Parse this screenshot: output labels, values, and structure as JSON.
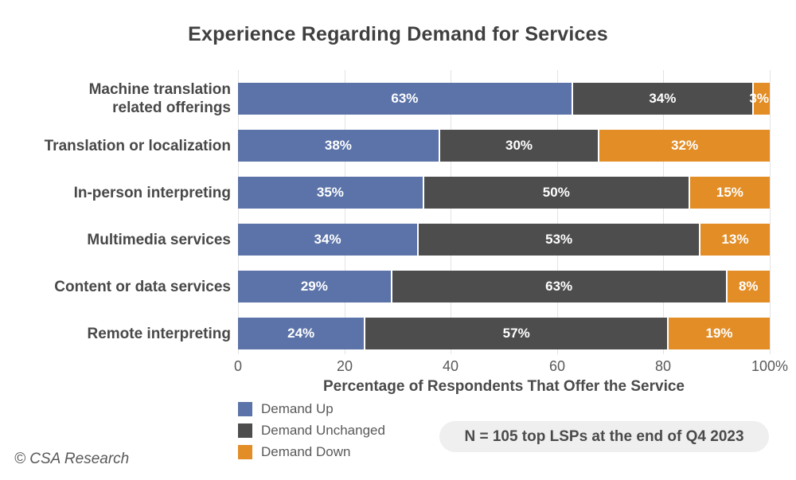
{
  "title": "Experience Regarding Demand for Services",
  "note_badge": "N = 105 top LSPs at the end of Q4 2023",
  "copyright": "© CSA Research",
  "colors": {
    "demand_up": "#5B73A8",
    "demand_unchanged": "#4D4D4D",
    "demand_down": "#E28D26",
    "title_text": "#3F3F3F",
    "axis_text": "#595959",
    "gridline": "#E3E3E3",
    "note_background": "#EFEFEF",
    "bar_value_text": "#FFFFFF"
  },
  "chart_data": {
    "type": "bar",
    "orientation": "horizontal",
    "stacked": true,
    "title": "Experience Regarding Demand for Services",
    "xlabel": "Percentage of Respondents That Offer the Service",
    "ylabel": "",
    "xlim": [
      0,
      100
    ],
    "x_ticks": [
      "0",
      "20",
      "40",
      "60",
      "80",
      "100%"
    ],
    "x_tick_values": [
      0,
      20,
      40,
      60,
      80,
      100
    ],
    "grid": true,
    "legend_position": "bottom-left",
    "value_label_suffix": "%",
    "categories": [
      "Machine translation related offerings",
      "Translation or localization",
      "In-person interpreting",
      "Multimedia services",
      "Content or data services",
      "Remote interpreting"
    ],
    "category_label_lines": [
      [
        "Machine translation",
        "related offerings"
      ],
      [
        "Translation or localization"
      ],
      [
        "In-person interpreting"
      ],
      [
        "Multimedia services"
      ],
      [
        "Content or data services"
      ],
      [
        "Remote interpreting"
      ]
    ],
    "series": [
      {
        "name": "Demand Up",
        "color": "#5B73A8",
        "values": [
          63,
          38,
          35,
          34,
          29,
          24
        ]
      },
      {
        "name": "Demand Unchanged",
        "color": "#4D4D4D",
        "values": [
          34,
          30,
          50,
          53,
          63,
          57
        ]
      },
      {
        "name": "Demand Down",
        "color": "#E28D26",
        "values": [
          3,
          32,
          15,
          13,
          8,
          19
        ]
      }
    ]
  }
}
